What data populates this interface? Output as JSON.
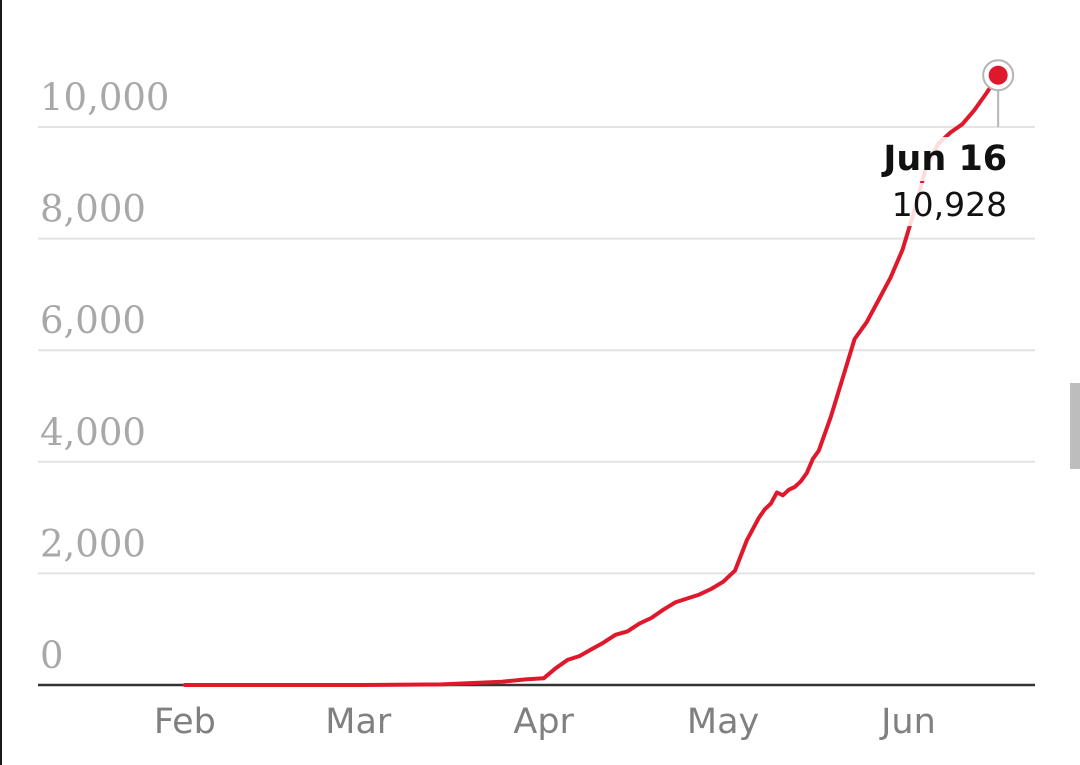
{
  "colors": {
    "series": "#e0182b",
    "grid": "#e4e4e4",
    "baseline": "#333333",
    "tick_text": "#a8a8a8",
    "x_tick_text": "#808080",
    "annotation_text": "#111111"
  },
  "chart_data": {
    "type": "line",
    "title": "",
    "xlabel": "",
    "ylabel": "",
    "ylim": [
      0,
      10000
    ],
    "y_ticks": [
      "0",
      "2,000",
      "4,000",
      "6,000",
      "8,000",
      "10,000"
    ],
    "y_tick_values": [
      0,
      2000,
      4000,
      6000,
      8000,
      10000
    ],
    "x_ticks": [
      "Feb",
      "Mar",
      "Apr",
      "May",
      "Jun"
    ],
    "x_tick_dates": [
      "2020-02-01",
      "2020-03-01",
      "2020-04-01",
      "2020-05-01",
      "2020-06-01"
    ],
    "xlim": [
      "2020-01-26",
      "2020-06-23"
    ],
    "grid": true,
    "legend": "none",
    "series": [
      {
        "x": [
          "2020-02-01",
          "2020-03-01",
          "2020-03-15",
          "2020-03-25",
          "2020-03-29",
          "2020-04-01",
          "2020-04-03",
          "2020-04-05",
          "2020-04-07",
          "2020-04-09",
          "2020-04-11",
          "2020-04-13",
          "2020-04-15",
          "2020-04-17",
          "2020-04-19",
          "2020-04-21",
          "2020-04-23",
          "2020-04-25",
          "2020-04-27",
          "2020-04-29",
          "2020-05-01",
          "2020-05-03",
          "2020-05-05",
          "2020-05-07",
          "2020-05-08",
          "2020-05-09",
          "2020-05-10",
          "2020-05-11",
          "2020-05-12",
          "2020-05-13",
          "2020-05-14",
          "2020-05-15",
          "2020-05-16",
          "2020-05-17",
          "2020-05-19",
          "2020-05-21",
          "2020-05-23",
          "2020-05-25",
          "2020-05-27",
          "2020-05-29",
          "2020-05-31",
          "2020-06-02",
          "2020-06-04",
          "2020-06-06",
          "2020-06-08",
          "2020-06-10",
          "2020-06-12",
          "2020-06-14",
          "2020-06-16"
        ],
        "y": [
          0,
          0,
          10,
          60,
          100,
          120,
          300,
          450,
          520,
          640,
          760,
          900,
          960,
          1100,
          1200,
          1350,
          1480,
          1550,
          1620,
          1720,
          1850,
          2050,
          2600,
          3000,
          3150,
          3250,
          3450,
          3400,
          3500,
          3550,
          3650,
          3800,
          4050,
          4200,
          4800,
          5500,
          6200,
          6500,
          6900,
          7300,
          7800,
          8500,
          9300,
          9700,
          9900,
          10050,
          10300,
          10600,
          10928
        ]
      }
    ],
    "annotations": [
      {
        "date_label": "Jun 16",
        "value_label": "10,928"
      }
    ]
  }
}
